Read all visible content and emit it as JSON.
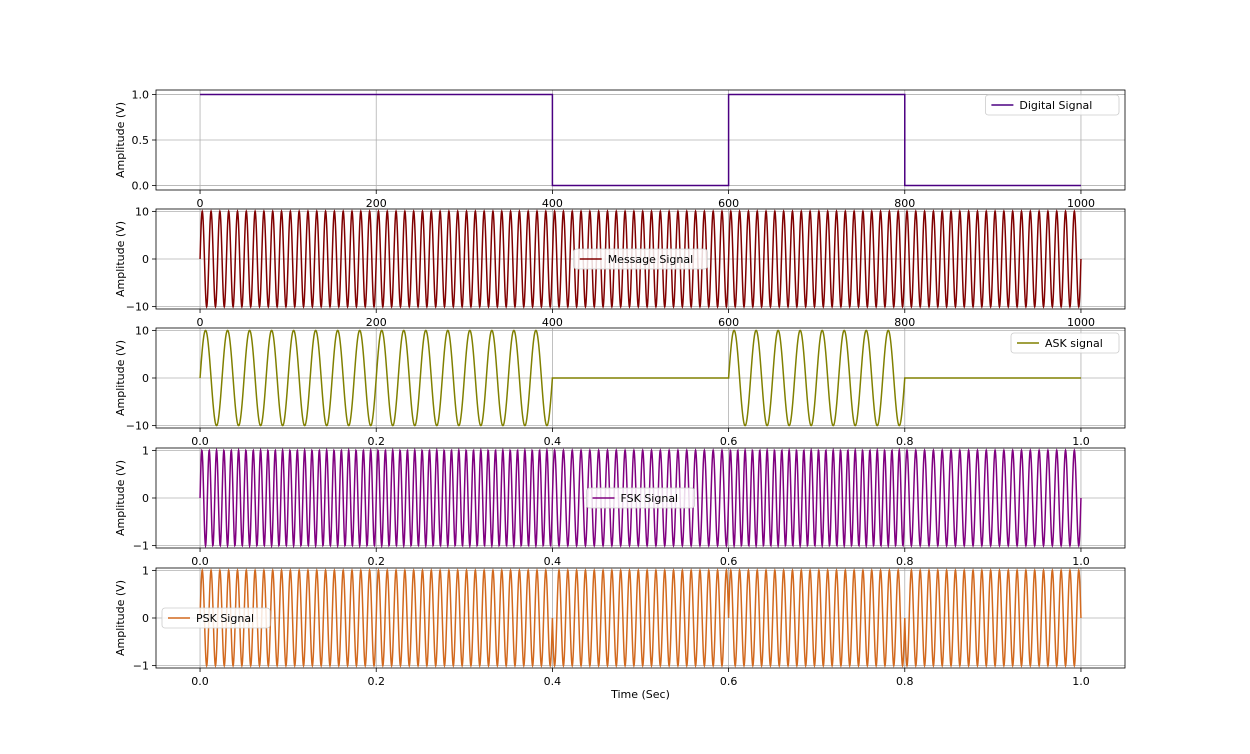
{
  "chart_data": [
    {
      "type": "line",
      "xlabel": "",
      "ylabel": "Amplitude (V)",
      "xlim": [
        -50,
        1050
      ],
      "ylim": [
        -0.05,
        1.05
      ],
      "xticks": [
        0,
        200,
        400,
        600,
        800,
        1000
      ],
      "xtick_labels": [
        "0",
        "200",
        "400",
        "600",
        "800",
        "1000"
      ],
      "yticks": [
        0,
        0.5,
        1
      ],
      "ytick_labels": [
        "0.0",
        "0.5",
        "1.0"
      ],
      "grid": true,
      "legend_loc": "upper right",
      "series": [
        {
          "name": "Digital Signal",
          "color": "#4b0082",
          "kind": "steps",
          "points": [
            [
              0,
              1
            ],
            [
              400,
              1
            ],
            [
              400,
              0
            ],
            [
              600,
              0
            ],
            [
              600,
              1
            ],
            [
              800,
              1
            ],
            [
              800,
              0
            ],
            [
              1000,
              0
            ]
          ]
        }
      ]
    },
    {
      "type": "line",
      "xlabel": "",
      "ylabel": "Amplitude (V)",
      "xlim": [
        -50,
        1050
      ],
      "ylim": [
        -10.5,
        10.5
      ],
      "xticks": [
        0,
        200,
        400,
        600,
        800,
        1000
      ],
      "xtick_labels": [
        "0",
        "200",
        "400",
        "600",
        "800",
        "1000"
      ],
      "yticks": [
        -10,
        0,
        10
      ],
      "ytick_labels": [
        "−10",
        "0",
        "10"
      ],
      "grid": true,
      "legend_loc": "center",
      "series": [
        {
          "name": "Message Signal",
          "color": "#800000",
          "kind": "sine",
          "amplitude": 10,
          "cycles_per_unit": 0.1,
          "x_range": [
            0,
            1000
          ]
        }
      ]
    },
    {
      "type": "line",
      "xlabel": "",
      "ylabel": "Amplitude (V)",
      "xlim": [
        -0.05,
        1.05
      ],
      "ylim": [
        -10.5,
        10.5
      ],
      "xticks": [
        0,
        0.2,
        0.4,
        0.6,
        0.8,
        1.0
      ],
      "xtick_labels": [
        "0.0",
        "0.2",
        "0.4",
        "0.6",
        "0.8",
        "1.0"
      ],
      "yticks": [
        -10,
        0,
        10
      ],
      "ytick_labels": [
        "−10",
        "0",
        "10"
      ],
      "grid": true,
      "legend_loc": "upper right",
      "series": [
        {
          "name": "ASK signal",
          "color": "#808000",
          "kind": "ask",
          "amplitude": 10,
          "frequency": 40,
          "on_intervals": [
            [
              0,
              0.4
            ],
            [
              0.6,
              0.8
            ]
          ],
          "x_range": [
            0,
            1
          ]
        }
      ]
    },
    {
      "type": "line",
      "xlabel": "",
      "ylabel": "Amplitude (V)",
      "xlim": [
        -0.05,
        1.05
      ],
      "ylim": [
        -1.05,
        1.05
      ],
      "xticks": [
        0,
        0.2,
        0.4,
        0.6,
        0.8,
        1.0
      ],
      "xtick_labels": [
        "0.0",
        "0.2",
        "0.4",
        "0.6",
        "0.8",
        "1.0"
      ],
      "yticks": [
        -1,
        0,
        1
      ],
      "ytick_labels": [
        "−1",
        "0",
        "1"
      ],
      "grid": true,
      "legend_loc": "center",
      "series": [
        {
          "name": "FSK Signal",
          "color": "#800080",
          "kind": "fsk",
          "amplitude": 1,
          "frequency_high": 120,
          "frequency_low": 100,
          "on_intervals": [
            [
              0,
              0.4
            ],
            [
              0.6,
              0.8
            ]
          ],
          "x_range": [
            0,
            1
          ]
        }
      ]
    },
    {
      "type": "line",
      "xlabel": "Time (Sec)",
      "ylabel": "Amplitude (V)",
      "xlim": [
        -0.05,
        1.05
      ],
      "ylim": [
        -1.05,
        1.05
      ],
      "xticks": [
        0,
        0.2,
        0.4,
        0.6,
        0.8,
        1.0
      ],
      "xtick_labels": [
        "0.0",
        "0.2",
        "0.4",
        "0.6",
        "0.8",
        "1.0"
      ],
      "yticks": [
        -1,
        0,
        1
      ],
      "ytick_labels": [
        "−1",
        "0",
        "1"
      ],
      "grid": true,
      "legend_loc": "center left",
      "series": [
        {
          "name": "PSK Signal",
          "color": "#d2691e",
          "kind": "psk",
          "amplitude": 1,
          "frequency": 100,
          "on_intervals": [
            [
              0,
              0.4
            ],
            [
              0.6,
              0.8
            ]
          ],
          "x_range": [
            0,
            1
          ]
        }
      ]
    }
  ]
}
